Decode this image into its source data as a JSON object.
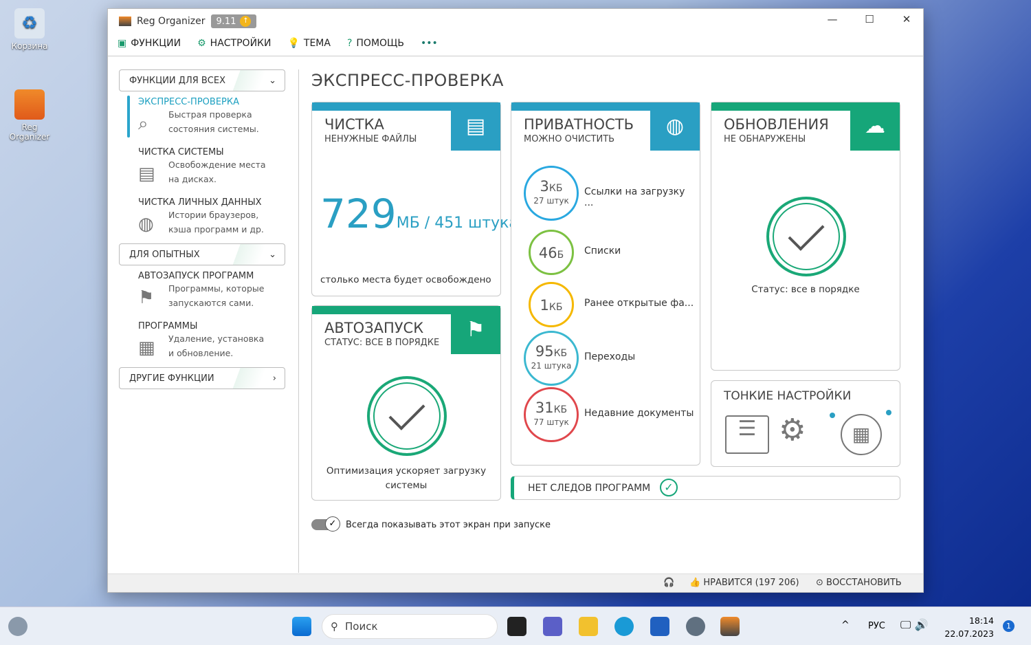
{
  "desktop": {
    "icons": [
      {
        "label": "Корзина"
      },
      {
        "label": "Reg Organizer"
      }
    ]
  },
  "window": {
    "app_name": "Reg Organizer",
    "version": "9.11",
    "controls": {
      "minimize": "—",
      "maximize": "☐",
      "close": "✕"
    }
  },
  "menu": [
    {
      "icon": "briefcase-icon",
      "label": "ФУНКЦИИ"
    },
    {
      "icon": "gear-icon",
      "label": "НАСТРОЙКИ"
    },
    {
      "icon": "bulb-icon",
      "label": "ТЕМА"
    },
    {
      "icon": "help-icon",
      "label": "ПОМОЩЬ"
    },
    {
      "icon": "more-icon",
      "label": "•••"
    }
  ],
  "sidebar": {
    "group1": "ФУНКЦИИ ДЛЯ ВСЕХ",
    "items1": [
      {
        "title": "ЭКСПРЕСС-ПРОВЕРКА",
        "desc1": "Быстрая проверка",
        "desc2": "состояния системы.",
        "active": true
      },
      {
        "title": "ЧИСТКА СИСТЕМЫ",
        "desc1": "Освобождение места",
        "desc2": "на дисках."
      },
      {
        "title": "ЧИСТКА ЛИЧНЫХ ДАННЫХ",
        "desc1": "Истории браузеров,",
        "desc2": "кэша программ и др."
      }
    ],
    "group2": "ДЛЯ ОПЫТНЫХ",
    "items2": [
      {
        "title": "АВТОЗАПУСК ПРОГРАММ",
        "desc1": "Программы, которые",
        "desc2": "запускаются сами."
      },
      {
        "title": "ПРОГРАММЫ",
        "desc1": "Удаление, установка",
        "desc2": "и обновление."
      }
    ],
    "group3": "ДРУГИЕ ФУНКЦИИ"
  },
  "main": {
    "title": "ЭКСПРЕСС-ПРОВЕРКА",
    "cleanup": {
      "title": "ЧИСТКА",
      "subtitle": "НЕНУЖНЫЕ ФАЙЛЫ",
      "value": "729",
      "unit": "МБ / 451 штука",
      "note": "столько места будет освобождено"
    },
    "autorun": {
      "title": "АВТОЗАПУСК",
      "subtitle": "СТАТУС: ВСЕ В ПОРЯДКЕ",
      "note1": "Оптимизация ускоряет загрузку",
      "note2": "системы"
    },
    "privacy": {
      "title": "ПРИВАТНОСТЬ",
      "subtitle": "МОЖНО ОЧИСТИТЬ",
      "items": [
        {
          "value": "3",
          "unit": "КБ",
          "count": "27 штук",
          "label": "Ссылки на загрузку ...",
          "color": "#29a8e0"
        },
        {
          "value": "46",
          "unit": "Б",
          "count": "",
          "label": "Списки",
          "color": "#7cc142"
        },
        {
          "value": "1",
          "unit": "КБ",
          "count": "",
          "label": "Ранее открытые фа...",
          "color": "#f5b800"
        },
        {
          "value": "95",
          "unit": "КБ",
          "count": "21 штука",
          "label": "Переходы",
          "color": "#3bb8d0"
        },
        {
          "value": "31",
          "unit": "КБ",
          "count": "77 штук",
          "label": "Недавние документы",
          "color": "#e0474c"
        }
      ]
    },
    "updates": {
      "title": "ОБНОВЛЕНИЯ",
      "subtitle": "НЕ ОБНАРУЖЕНЫ",
      "status": "Статус: все в порядке"
    },
    "tweaks": {
      "title": "ТОНКИЕ НАСТРОЙКИ"
    },
    "no_traces": "НЕТ СЛЕДОВ ПРОГРАММ",
    "always_show": "Всегда показывать этот экран при запуске",
    "always_show_on": true,
    "colors": {
      "blue": "#2a9fc3",
      "green": "#16a679"
    }
  },
  "statusbar": {
    "like": "НРАВИТСЯ (197 206)",
    "restore": "ВОССТАНОВИТЬ"
  },
  "taskbar": {
    "search_placeholder": "Поиск",
    "lang": "РУС",
    "time": "18:14",
    "date": "22.07.2023",
    "notifications": "1"
  }
}
